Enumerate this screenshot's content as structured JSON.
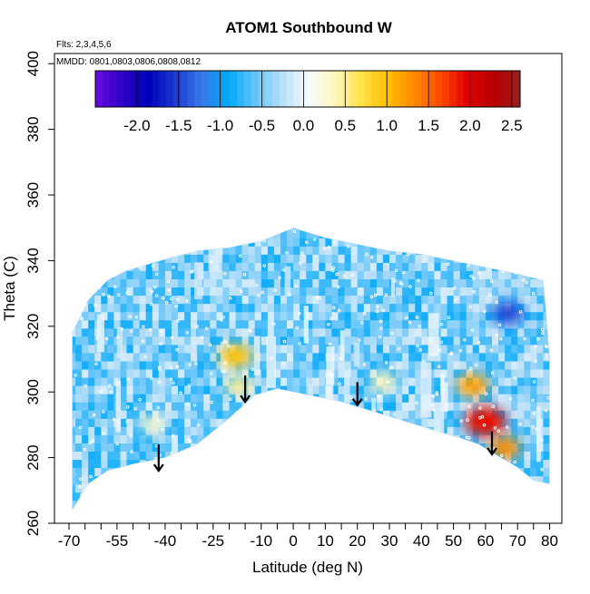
{
  "chart_data": {
    "type": "heatmap",
    "title": "ATOM1 Southbound W",
    "subtitle_flts": "Flts: 2,3,4,5,6",
    "subtitle_mmdd": "MMDD: 0801,0803,0806,0808,0812",
    "xlabel": "Latitude (deg N)",
    "ylabel": "Theta (C)",
    "xlim": [
      -70,
      80
    ],
    "ylim": [
      260,
      400
    ],
    "x_major_ticks": [
      -70,
      -55,
      -40,
      -25,
      -10,
      0,
      10,
      20,
      30,
      40,
      50,
      60,
      70,
      80
    ],
    "x_tick_labels": [
      "-70",
      "-55",
      "-40",
      "-25",
      "-10",
      "0",
      "10",
      "20",
      "30",
      "40",
      "50",
      "60",
      "70",
      "80"
    ],
    "y_ticks": [
      260,
      280,
      300,
      320,
      340,
      360,
      380,
      400
    ],
    "y_tick_labels": [
      "260",
      "280",
      "300",
      "320",
      "340",
      "360",
      "380",
      "400"
    ],
    "colorbar": {
      "range": [
        -2.5,
        2.6
      ],
      "ticks": [
        -2.0,
        -1.5,
        -1.0,
        -0.5,
        0.0,
        0.5,
        1.0,
        1.5,
        2.0,
        2.5
      ],
      "tick_labels": [
        "-2.0",
        "-1.5",
        "-1.0",
        "-0.5",
        "0.0",
        "0.5",
        "1.0",
        "1.5",
        "2.0",
        "2.5"
      ],
      "colors": [
        "#6a0dde",
        "#2f00c8",
        "#0000b8",
        "#1a3ad0",
        "#3a78ea",
        "#00a8f8",
        "#60c4fa",
        "#b4def8",
        "#f6fbff",
        "#fff7c0",
        "#ffe34a",
        "#ffc000",
        "#ff8a00",
        "#ff4a00",
        "#e00000",
        "#b80000",
        "#962020"
      ]
    },
    "domain_top": [
      [
        -69,
        318
      ],
      [
        -64,
        328
      ],
      [
        -58,
        334
      ],
      [
        -52,
        337
      ],
      [
        -45,
        339
      ],
      [
        -38,
        341
      ],
      [
        -30,
        343
      ],
      [
        -20,
        344
      ],
      [
        -10,
        346
      ],
      [
        0,
        350
      ],
      [
        10,
        347
      ],
      [
        20,
        345
      ],
      [
        30,
        343
      ],
      [
        40,
        342
      ],
      [
        50,
        340
      ],
      [
        60,
        338
      ],
      [
        70,
        336
      ],
      [
        78,
        334
      ],
      [
        79,
        323
      ],
      [
        80,
        310
      ],
      [
        80,
        300
      ]
    ],
    "domain_bottom": [
      [
        -69,
        264
      ],
      [
        -64,
        272
      ],
      [
        -58,
        276
      ],
      [
        -50,
        278
      ],
      [
        -40,
        280
      ],
      [
        -30,
        284
      ],
      [
        -20,
        292
      ],
      [
        -12,
        299
      ],
      [
        -5,
        301
      ],
      [
        5,
        299
      ],
      [
        15,
        297
      ],
      [
        25,
        294
      ],
      [
        35,
        291
      ],
      [
        45,
        288
      ],
      [
        52,
        286
      ],
      [
        58,
        284
      ],
      [
        63,
        281
      ],
      [
        70,
        277
      ],
      [
        75,
        273
      ],
      [
        80,
        272
      ]
    ],
    "features": [
      {
        "name": "positive patch",
        "x": -18,
        "y": 311,
        "value": 1.0
      },
      {
        "name": "positive patch",
        "x": -17,
        "y": 302,
        "value": 0.5
      },
      {
        "name": "positive plume",
        "x": 28,
        "y": 303,
        "value": 0.4
      },
      {
        "name": "positive patch",
        "x": 56,
        "y": 302,
        "value": 1.2
      },
      {
        "name": "positive core",
        "x": 60,
        "y": 291,
        "value": 1.9
      },
      {
        "name": "positive core",
        "x": 66,
        "y": 283,
        "value": 1.3
      },
      {
        "name": "positive spot",
        "x": -44,
        "y": 290,
        "value": 0.3
      },
      {
        "name": "negative spot",
        "x": 67,
        "y": 324,
        "value": -1.5
      }
    ],
    "arrows": [
      {
        "x": -42,
        "y_from": 284,
        "y_to": 276
      },
      {
        "x": -15,
        "y_from": 305,
        "y_to": 297
      },
      {
        "x": 20,
        "y_from": 303,
        "y_to": 296
      },
      {
        "x": 62,
        "y_from": 288,
        "y_to": 281
      }
    ]
  }
}
